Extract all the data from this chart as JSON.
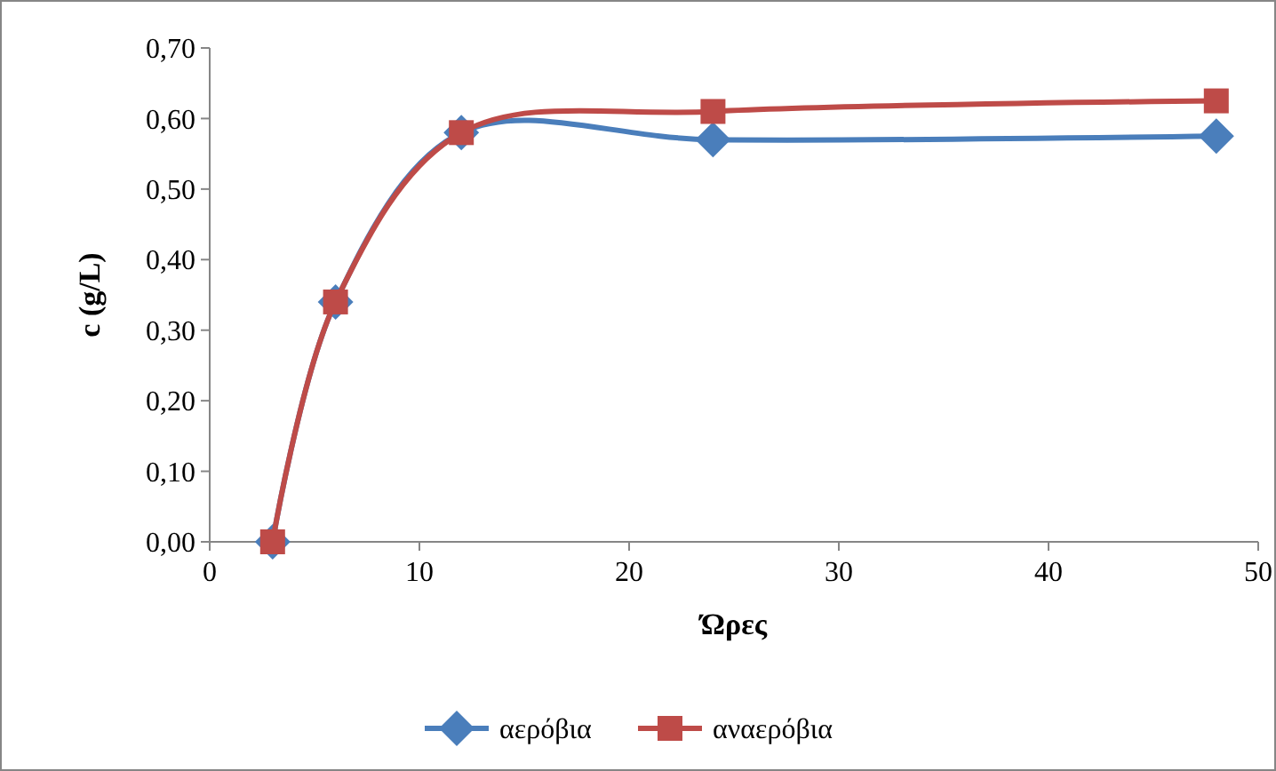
{
  "chart_data": {
    "type": "line",
    "xlabel": "Ώρες",
    "ylabel": "c (g/L)",
    "x": [
      3,
      6,
      12,
      24,
      48
    ],
    "series": [
      {
        "name": "αερόβια",
        "color": "#4a7ebb",
        "values": [
          0,
          0.34,
          0.58,
          0.57,
          0.575
        ],
        "marker": "diamond"
      },
      {
        "name": "αναερόβια",
        "color": "#be4b48",
        "values": [
          0,
          0.34,
          0.58,
          0.61,
          0.625
        ],
        "marker": "square"
      }
    ],
    "xlim": [
      0,
      50
    ],
    "xticks": [
      0,
      10,
      20,
      30,
      40,
      50
    ],
    "ylim": [
      0,
      0.7
    ],
    "yticks": [
      {
        "value": 0,
        "label": "0,00"
      },
      {
        "value": 0.1,
        "label": "0,10"
      },
      {
        "value": 0.2,
        "label": "0,20"
      },
      {
        "value": 0.3,
        "label": "0,30"
      },
      {
        "value": 0.4,
        "label": "0,40"
      },
      {
        "value": 0.5,
        "label": "0,50"
      },
      {
        "value": 0.6,
        "label": "0,60"
      },
      {
        "value": 0.7,
        "label": "0,70"
      }
    ],
    "grid": false,
    "legend": "bottom",
    "line_style": "solid"
  }
}
